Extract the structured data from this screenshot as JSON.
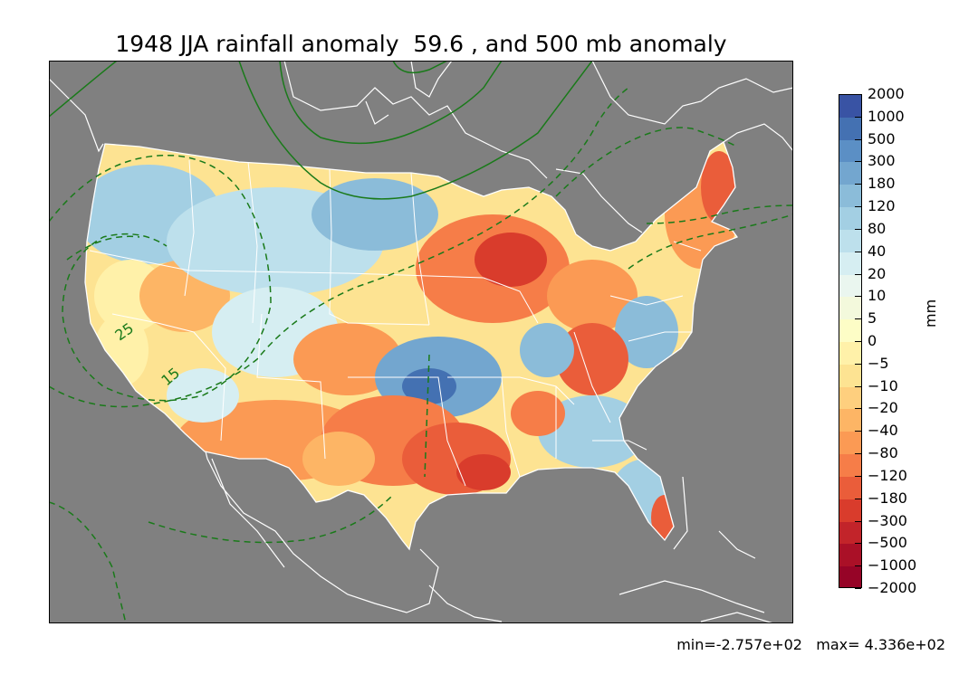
{
  "title": "1948 JJA rainfall anomaly  59.6 , and 500 mb anomaly",
  "colorbar": {
    "unit": "mm",
    "labels": [
      "2000",
      "1000",
      "500",
      "300",
      "180",
      "120",
      "80",
      "40",
      "20",
      "10",
      "5",
      "0",
      "−5",
      "−10",
      "−20",
      "−40",
      "−80",
      "−120",
      "−180",
      "−300",
      "−500",
      "−1000",
      "−2000"
    ],
    "colors": [
      "#3953a4",
      "#4471b2",
      "#5b8fc5",
      "#73a6cf",
      "#8bbcd9",
      "#a3cfe3",
      "#bde0ec",
      "#d6eef2",
      "#eaf6ef",
      "#f3f9dc",
      "#fdfdc6",
      "#fff1a9",
      "#fde392",
      "#fecf7e",
      "#fdb565",
      "#fb9a54",
      "#f67d48",
      "#ea5d3a",
      "#d93c2c",
      "#c2242a",
      "#aa1027",
      "#960427"
    ]
  },
  "map": {
    "ocean_color": "#808080",
    "border_color": "#ffffff",
    "contour_color": "#1a7a1a",
    "contour_labels": [
      "25",
      "15"
    ]
  },
  "footer": {
    "min_text": "min=-2.757e+02",
    "max_text": "max= 4.336e+02"
  }
}
